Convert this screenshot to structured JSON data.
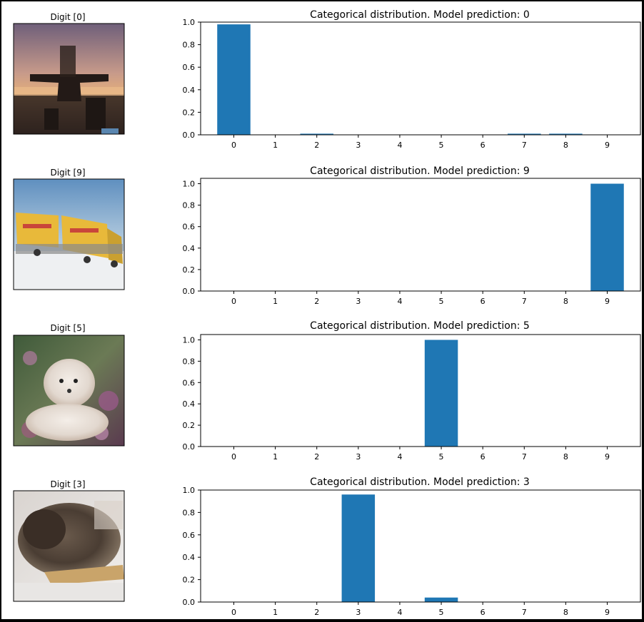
{
  "panels": [
    {
      "image_label": "Digit [0]",
      "image_icon": "airplane-photo",
      "chart_data": {
        "type": "bar",
        "title": "Categorical distribution. Model prediction: 0",
        "categories": [
          "0",
          "1",
          "2",
          "3",
          "4",
          "5",
          "6",
          "7",
          "8",
          "9"
        ],
        "values": [
          0.98,
          0.0,
          0.01,
          0.0,
          0.0,
          0.0,
          0.0,
          0.01,
          0.01,
          0.0
        ],
        "ylim": [
          0,
          1.0
        ],
        "yticks": [
          "0.0",
          "0.2",
          "0.4",
          "0.6",
          "0.8",
          "1.0"
        ],
        "grid": false,
        "color": "#1f77b4"
      }
    },
    {
      "image_label": "Digit [9]",
      "image_icon": "truck-photo",
      "chart_data": {
        "type": "bar",
        "title": "Categorical distribution. Model prediction: 9",
        "categories": [
          "0",
          "1",
          "2",
          "3",
          "4",
          "5",
          "6",
          "7",
          "8",
          "9"
        ],
        "values": [
          0.0,
          0.0,
          0.0,
          0.0,
          0.0,
          0.0,
          0.0,
          0.0,
          0.0,
          1.0
        ],
        "ylim": [
          0,
          1.05
        ],
        "yticks": [
          "0.0",
          "0.2",
          "0.4",
          "0.6",
          "0.8",
          "1.0"
        ],
        "grid": false,
        "color": "#1f77b4"
      }
    },
    {
      "image_label": "Digit [5]",
      "image_icon": "dog-photo",
      "chart_data": {
        "type": "bar",
        "title": "Categorical distribution. Model prediction: 5",
        "categories": [
          "0",
          "1",
          "2",
          "3",
          "4",
          "5",
          "6",
          "7",
          "8",
          "9"
        ],
        "values": [
          0.0,
          0.0,
          0.0,
          0.0,
          0.0,
          1.0,
          0.0,
          0.0,
          0.0,
          0.0
        ],
        "ylim": [
          0,
          1.05
        ],
        "yticks": [
          "0.0",
          "0.2",
          "0.4",
          "0.6",
          "0.8",
          "1.0"
        ],
        "grid": false,
        "color": "#1f77b4"
      }
    },
    {
      "image_label": "Digit [3]",
      "image_icon": "cat-photo",
      "chart_data": {
        "type": "bar",
        "title": "Categorical distribution. Model prediction: 3",
        "categories": [
          "0",
          "1",
          "2",
          "3",
          "4",
          "5",
          "6",
          "7",
          "8",
          "9"
        ],
        "values": [
          0.0,
          0.0,
          0.0,
          0.96,
          0.0,
          0.04,
          0.0,
          0.0,
          0.0,
          0.0
        ],
        "ylim": [
          0,
          1.0
        ],
        "yticks": [
          "0.0",
          "0.2",
          "0.4",
          "0.6",
          "0.8",
          "1.0"
        ],
        "grid": false,
        "color": "#1f77b4"
      }
    }
  ]
}
